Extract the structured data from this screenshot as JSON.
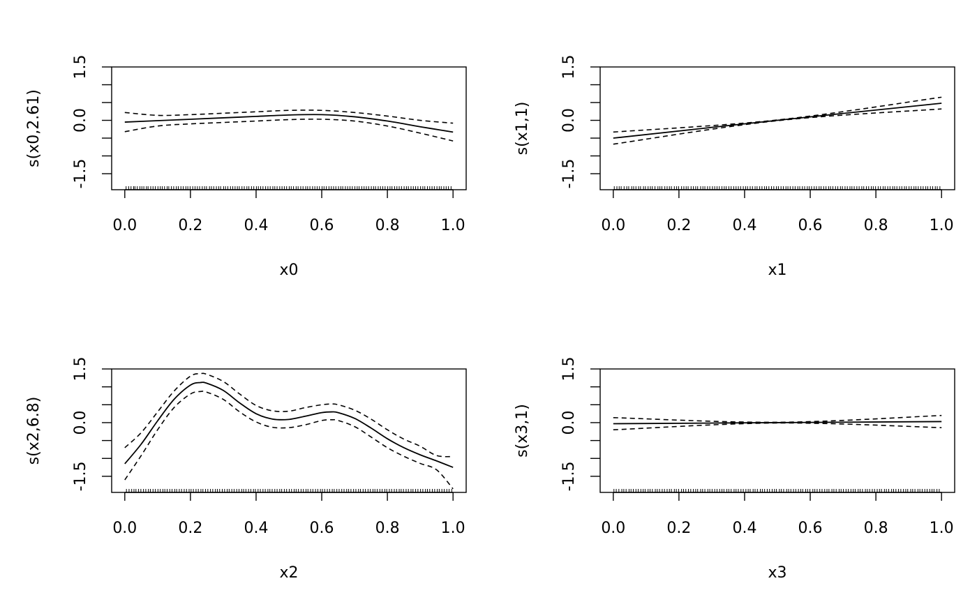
{
  "chart_data": [
    {
      "type": "line",
      "title": "",
      "xlabel": "x0",
      "ylabel": "s(x0,2.61)",
      "xlim": [
        -0.04,
        1.04
      ],
      "ylim": [
        -1.95,
        1.5
      ],
      "x_ticks": [
        0.0,
        0.2,
        0.4,
        0.6,
        0.8,
        1.0
      ],
      "x_tick_labels": [
        "0.0",
        "0.2",
        "0.4",
        "0.6",
        "0.8",
        "1.0"
      ],
      "y_ticks": [
        -1.5,
        -1.0,
        -0.5,
        0.0,
        0.5,
        1.0,
        1.5
      ],
      "y_tick_labels": [
        "-1.5",
        "",
        "",
        "0.0",
        "",
        "",
        "1.5"
      ],
      "x": [
        0.0,
        0.1,
        0.2,
        0.3,
        0.4,
        0.5,
        0.6,
        0.7,
        0.8,
        0.9,
        1.0
      ],
      "series": [
        {
          "name": "fit",
          "values": [
            -0.05,
            -0.01,
            0.03,
            0.07,
            0.11,
            0.15,
            0.16,
            0.1,
            -0.02,
            -0.18,
            -0.33
          ]
        },
        {
          "name": "upper",
          "values": [
            0.22,
            0.14,
            0.16,
            0.2,
            0.24,
            0.28,
            0.28,
            0.22,
            0.12,
            0.0,
            -0.08
          ]
        },
        {
          "name": "lower",
          "values": [
            -0.32,
            -0.16,
            -0.1,
            -0.06,
            -0.02,
            0.02,
            0.03,
            -0.02,
            -0.16,
            -0.36,
            -0.58
          ]
        }
      ],
      "rug": [
        0.004,
        0.012,
        0.019,
        0.027,
        0.031,
        0.038,
        0.046,
        0.052,
        0.058,
        0.066,
        0.071,
        0.079,
        0.086,
        0.093,
        0.101,
        0.108,
        0.114,
        0.121,
        0.129,
        0.134,
        0.142,
        0.149,
        0.157,
        0.163,
        0.171,
        0.178,
        0.186,
        0.192,
        0.199,
        0.207,
        0.214,
        0.221,
        0.228,
        0.236,
        0.243,
        0.249,
        0.258,
        0.264,
        0.271,
        0.279,
        0.286,
        0.292,
        0.301,
        0.307,
        0.314,
        0.322,
        0.329,
        0.336,
        0.343,
        0.349,
        0.357,
        0.364,
        0.372,
        0.378,
        0.386,
        0.393,
        0.401,
        0.407,
        0.414,
        0.421,
        0.429,
        0.436,
        0.443,
        0.451,
        0.457,
        0.464,
        0.472,
        0.479,
        0.486,
        0.493,
        0.501,
        0.507,
        0.514,
        0.522,
        0.528,
        0.536,
        0.543,
        0.551,
        0.557,
        0.564,
        0.572,
        0.579,
        0.586,
        0.593,
        0.601,
        0.607,
        0.614,
        0.622,
        0.629,
        0.636,
        0.643,
        0.651,
        0.658,
        0.664,
        0.672,
        0.679,
        0.686,
        0.693,
        0.701,
        0.708,
        0.714,
        0.722,
        0.729,
        0.736,
        0.743,
        0.751,
        0.758,
        0.764,
        0.772,
        0.779,
        0.786,
        0.793,
        0.801,
        0.808,
        0.814,
        0.822,
        0.829,
        0.836,
        0.843,
        0.851,
        0.858,
        0.864,
        0.872,
        0.879,
        0.886,
        0.893,
        0.901,
        0.908,
        0.914,
        0.922,
        0.929,
        0.936,
        0.943,
        0.951,
        0.958,
        0.964,
        0.972,
        0.979,
        0.986,
        0.994
      ]
    },
    {
      "type": "line",
      "title": "",
      "xlabel": "x1",
      "ylabel": "s(x1,1)",
      "xlim": [
        -0.04,
        1.04
      ],
      "ylim": [
        -1.95,
        1.5
      ],
      "x_ticks": [
        0.0,
        0.2,
        0.4,
        0.6,
        0.8,
        1.0
      ],
      "x_tick_labels": [
        "0.0",
        "0.2",
        "0.4",
        "0.6",
        "0.8",
        "1.0"
      ],
      "y_ticks": [
        -1.5,
        -1.0,
        -0.5,
        0.0,
        0.5,
        1.0,
        1.5
      ],
      "y_tick_labels": [
        "-1.5",
        "",
        "",
        "0.0",
        "",
        "",
        "1.5"
      ],
      "x": [
        0.0,
        0.5,
        1.0
      ],
      "series": [
        {
          "name": "fit",
          "values": [
            -0.5,
            0.0,
            0.48
          ]
        },
        {
          "name": "upper",
          "values": [
            -0.33,
            0.01,
            0.65
          ]
        },
        {
          "name": "lower",
          "values": [
            -0.67,
            -0.01,
            0.32
          ]
        }
      ],
      "rug": [
        0.003,
        0.011,
        0.018,
        0.024,
        0.033,
        0.041,
        0.047,
        0.056,
        0.062,
        0.069,
        0.077,
        0.083,
        0.092,
        0.098,
        0.106,
        0.113,
        0.119,
        0.127,
        0.136,
        0.142,
        0.148,
        0.157,
        0.164,
        0.171,
        0.177,
        0.186,
        0.193,
        0.199,
        0.208,
        0.215,
        0.222,
        0.228,
        0.237,
        0.244,
        0.251,
        0.257,
        0.266,
        0.273,
        0.279,
        0.287,
        0.294,
        0.302,
        0.309,
        0.316,
        0.323,
        0.331,
        0.338,
        0.344,
        0.352,
        0.359,
        0.367,
        0.374,
        0.381,
        0.388,
        0.396,
        0.403,
        0.409,
        0.417,
        0.424,
        0.432,
        0.438,
        0.446,
        0.453,
        0.461,
        0.467,
        0.474,
        0.482,
        0.489,
        0.497,
        0.503,
        0.511,
        0.518,
        0.526,
        0.532,
        0.539,
        0.547,
        0.554,
        0.562,
        0.568,
        0.576,
        0.583,
        0.591,
        0.597,
        0.604,
        0.612,
        0.619,
        0.627,
        0.633,
        0.641,
        0.648,
        0.656,
        0.662,
        0.669,
        0.677,
        0.684,
        0.692,
        0.698,
        0.706,
        0.713,
        0.721,
        0.727,
        0.734,
        0.742,
        0.749,
        0.757,
        0.763,
        0.771,
        0.778,
        0.786,
        0.792,
        0.799,
        0.807,
        0.814,
        0.822,
        0.828,
        0.836,
        0.843,
        0.851,
        0.857,
        0.864,
        0.872,
        0.879,
        0.887,
        0.893,
        0.901,
        0.908,
        0.916,
        0.922,
        0.929,
        0.937,
        0.944,
        0.952,
        0.958,
        0.966,
        0.973,
        0.981,
        0.987,
        0.995
      ]
    },
    {
      "type": "line",
      "title": "",
      "xlabel": "x2",
      "ylabel": "s(x2,6.8)",
      "xlim": [
        -0.04,
        1.04
      ],
      "ylim": [
        -1.95,
        1.5
      ],
      "x_ticks": [
        0.0,
        0.2,
        0.4,
        0.6,
        0.8,
        1.0
      ],
      "x_tick_labels": [
        "0.0",
        "0.2",
        "0.4",
        "0.6",
        "0.8",
        "1.0"
      ],
      "y_ticks": [
        -1.5,
        -1.0,
        -0.5,
        0.0,
        0.5,
        1.0,
        1.5
      ],
      "y_tick_labels": [
        "-1.5",
        "",
        "",
        "0.0",
        "",
        "",
        "1.5"
      ],
      "x": [
        0.0,
        0.05,
        0.1,
        0.15,
        0.2,
        0.23,
        0.25,
        0.3,
        0.35,
        0.4,
        0.45,
        0.5,
        0.55,
        0.6,
        0.63,
        0.65,
        0.7,
        0.75,
        0.8,
        0.85,
        0.9,
        0.95,
        1.0
      ],
      "series": [
        {
          "name": "fit",
          "values": [
            -1.15,
            -0.6,
            0.05,
            0.65,
            1.05,
            1.12,
            1.1,
            0.9,
            0.55,
            0.25,
            0.1,
            0.09,
            0.18,
            0.28,
            0.3,
            0.28,
            0.12,
            -0.15,
            -0.45,
            -0.7,
            -0.9,
            -1.07,
            -1.25
          ]
        },
        {
          "name": "upper",
          "values": [
            -0.7,
            -0.28,
            0.3,
            0.88,
            1.3,
            1.37,
            1.35,
            1.15,
            0.8,
            0.48,
            0.33,
            0.32,
            0.42,
            0.5,
            0.52,
            0.5,
            0.35,
            0.1,
            -0.2,
            -0.46,
            -0.66,
            -0.92,
            -0.95
          ]
        },
        {
          "name": "lower",
          "values": [
            -1.6,
            -0.92,
            -0.2,
            0.42,
            0.8,
            0.87,
            0.85,
            0.65,
            0.3,
            0.02,
            -0.13,
            -0.14,
            -0.06,
            0.06,
            0.08,
            0.06,
            -0.11,
            -0.4,
            -0.7,
            -0.94,
            -1.14,
            -1.32,
            -1.85
          ]
        }
      ],
      "rug": [
        0.005,
        0.013,
        0.021,
        0.028,
        0.034,
        0.042,
        0.049,
        0.057,
        0.064,
        0.072,
        0.078,
        0.086,
        0.093,
        0.101,
        0.108,
        0.116,
        0.122,
        0.129,
        0.137,
        0.144,
        0.152,
        0.158,
        0.166,
        0.173,
        0.181,
        0.188,
        0.196,
        0.202,
        0.209,
        0.217,
        0.224,
        0.232,
        0.238,
        0.246,
        0.253,
        0.261,
        0.268,
        0.276,
        0.282,
        0.289,
        0.297,
        0.304,
        0.312,
        0.318,
        0.326,
        0.333,
        0.341,
        0.348,
        0.356,
        0.362,
        0.369,
        0.377,
        0.384,
        0.392,
        0.398,
        0.406,
        0.413,
        0.421,
        0.428,
        0.436,
        0.442,
        0.449,
        0.457,
        0.464,
        0.472,
        0.478,
        0.486,
        0.493,
        0.501,
        0.508,
        0.516,
        0.522,
        0.529,
        0.537,
        0.544,
        0.552,
        0.558,
        0.566,
        0.573,
        0.581,
        0.588,
        0.596,
        0.602,
        0.609,
        0.617,
        0.624,
        0.632,
        0.638,
        0.646,
        0.653,
        0.661,
        0.668,
        0.676,
        0.682,
        0.689,
        0.697,
        0.704,
        0.712,
        0.718,
        0.726,
        0.733,
        0.741,
        0.748,
        0.756,
        0.762,
        0.769,
        0.777,
        0.784,
        0.792,
        0.798,
        0.806,
        0.813,
        0.821,
        0.828,
        0.836,
        0.842,
        0.849,
        0.857,
        0.864,
        0.872,
        0.878,
        0.886,
        0.893,
        0.901,
        0.908,
        0.916,
        0.922,
        0.929,
        0.937,
        0.944,
        0.952,
        0.958,
        0.966,
        0.973,
        0.981,
        0.988,
        0.996
      ]
    },
    {
      "type": "line",
      "title": "",
      "xlabel": "x3",
      "ylabel": "s(x3,1)",
      "xlim": [
        -0.04,
        1.04
      ],
      "ylim": [
        -1.95,
        1.5
      ],
      "x_ticks": [
        0.0,
        0.2,
        0.4,
        0.6,
        0.8,
        1.0
      ],
      "x_tick_labels": [
        "0.0",
        "0.2",
        "0.4",
        "0.6",
        "0.8",
        "1.0"
      ],
      "y_ticks": [
        -1.5,
        -1.0,
        -0.5,
        0.0,
        0.5,
        1.0,
        1.5
      ],
      "y_tick_labels": [
        "-1.5",
        "",
        "",
        "0.0",
        "",
        "",
        "1.5"
      ],
      "x": [
        0.0,
        0.5,
        1.0
      ],
      "series": [
        {
          "name": "fit",
          "values": [
            -0.03,
            0.0,
            0.03
          ]
        },
        {
          "name": "upper",
          "values": [
            0.14,
            0.01,
            0.2
          ]
        },
        {
          "name": "lower",
          "values": [
            -0.2,
            -0.01,
            -0.14
          ]
        }
      ],
      "rug": [
        0.002,
        0.009,
        0.017,
        0.026,
        0.032,
        0.039,
        0.048,
        0.054,
        0.061,
        0.069,
        0.076,
        0.084,
        0.091,
        0.097,
        0.106,
        0.112,
        0.119,
        0.128,
        0.134,
        0.141,
        0.149,
        0.156,
        0.164,
        0.171,
        0.177,
        0.186,
        0.192,
        0.199,
        0.208,
        0.214,
        0.221,
        0.229,
        0.236,
        0.244,
        0.251,
        0.257,
        0.266,
        0.272,
        0.279,
        0.288,
        0.294,
        0.301,
        0.309,
        0.316,
        0.324,
        0.331,
        0.337,
        0.346,
        0.352,
        0.359,
        0.368,
        0.374,
        0.381,
        0.389,
        0.396,
        0.404,
        0.411,
        0.417,
        0.426,
        0.432,
        0.439,
        0.448,
        0.454,
        0.461,
        0.469,
        0.476,
        0.484,
        0.491,
        0.497,
        0.506,
        0.512,
        0.519,
        0.528,
        0.534,
        0.541,
        0.549,
        0.556,
        0.564,
        0.571,
        0.577,
        0.586,
        0.592,
        0.599,
        0.608,
        0.614,
        0.621,
        0.629,
        0.636,
        0.644,
        0.651,
        0.657,
        0.666,
        0.672,
        0.679,
        0.688,
        0.694,
        0.701,
        0.709,
        0.716,
        0.724,
        0.731,
        0.737,
        0.746,
        0.752,
        0.759,
        0.768,
        0.774,
        0.781,
        0.789,
        0.796,
        0.804,
        0.811,
        0.817,
        0.826,
        0.832,
        0.839,
        0.848,
        0.854,
        0.861,
        0.869,
        0.876,
        0.884,
        0.891,
        0.897,
        0.906,
        0.912,
        0.919,
        0.928,
        0.934,
        0.941,
        0.949,
        0.956,
        0.964,
        0.971,
        0.977,
        0.986,
        0.993
      ]
    }
  ]
}
